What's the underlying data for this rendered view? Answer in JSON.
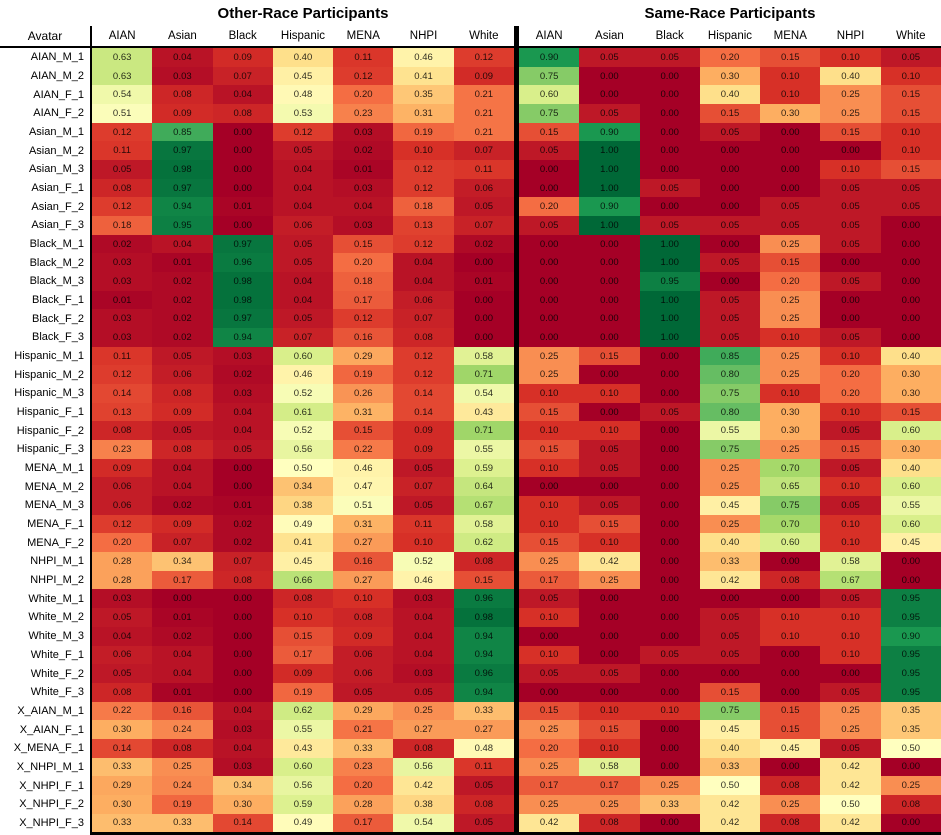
{
  "chart_data": {
    "type": "heatmap",
    "title_left": "Other-Race Participants",
    "title_right": "Same-Race Participants",
    "row_header": "Avatar",
    "columns": [
      "AIAN",
      "Asian",
      "Black",
      "Hispanic",
      "MENA",
      "NHPI",
      "White"
    ],
    "vmin": 0,
    "vmax": 1,
    "colormap": "RdYlGn",
    "colormap_anchors": [
      "#a50026",
      "#d73027",
      "#f46d43",
      "#fdae61",
      "#fee08b",
      "#ffffbf",
      "#d9ef8b",
      "#a6d96a",
      "#66bd63",
      "#1a9850",
      "#006837"
    ],
    "grid": false,
    "legend": "none",
    "rows": [
      {
        "label": "AIAN_M_1",
        "other": [
          0.63,
          0.04,
          0.09,
          0.4,
          0.11,
          0.46,
          0.12
        ],
        "same": [
          0.9,
          0.05,
          0.05,
          0.2,
          0.15,
          0.1,
          0.05
        ]
      },
      {
        "label": "AIAN_M_2",
        "other": [
          0.63,
          0.03,
          0.07,
          0.45,
          0.12,
          0.41,
          0.09
        ],
        "same": [
          0.75,
          0.0,
          0.0,
          0.3,
          0.1,
          0.4,
          0.1
        ]
      },
      {
        "label": "AIAN_F_1",
        "other": [
          0.54,
          0.08,
          0.04,
          0.48,
          0.2,
          0.35,
          0.21
        ],
        "same": [
          0.6,
          0.0,
          0.0,
          0.4,
          0.1,
          0.25,
          0.15
        ]
      },
      {
        "label": "AIAN_F_2",
        "other": [
          0.51,
          0.09,
          0.08,
          0.53,
          0.23,
          0.31,
          0.21
        ],
        "same": [
          0.75,
          0.05,
          0.0,
          0.15,
          0.3,
          0.25,
          0.15
        ]
      },
      {
        "label": "Asian_M_1",
        "other": [
          0.12,
          0.85,
          0.0,
          0.12,
          0.03,
          0.19,
          0.21
        ],
        "same": [
          0.15,
          0.9,
          0.0,
          0.05,
          0.0,
          0.15,
          0.1
        ]
      },
      {
        "label": "Asian_M_2",
        "other": [
          0.11,
          0.97,
          0.0,
          0.05,
          0.02,
          0.1,
          0.07
        ],
        "same": [
          0.05,
          1.0,
          0.0,
          0.0,
          0.0,
          0.0,
          0.1
        ]
      },
      {
        "label": "Asian_M_3",
        "other": [
          0.05,
          0.98,
          0.0,
          0.04,
          0.01,
          0.12,
          0.11
        ],
        "same": [
          0.0,
          1.0,
          0.0,
          0.0,
          0.0,
          0.1,
          0.15
        ]
      },
      {
        "label": "Asian_F_1",
        "other": [
          0.08,
          0.97,
          0.0,
          0.04,
          0.03,
          0.12,
          0.06
        ],
        "same": [
          0.0,
          1.0,
          0.05,
          0.0,
          0.0,
          0.05,
          0.05
        ]
      },
      {
        "label": "Asian_F_2",
        "other": [
          0.12,
          0.94,
          0.01,
          0.04,
          0.04,
          0.18,
          0.05
        ],
        "same": [
          0.2,
          0.9,
          0.0,
          0.0,
          0.05,
          0.05,
          0.05
        ]
      },
      {
        "label": "Asian_F_3",
        "other": [
          0.18,
          0.95,
          0.0,
          0.06,
          0.03,
          0.13,
          0.07
        ],
        "same": [
          0.05,
          1.0,
          0.05,
          0.05,
          0.05,
          0.05,
          0.0
        ]
      },
      {
        "label": "Black_M_1",
        "other": [
          0.02,
          0.04,
          0.97,
          0.05,
          0.15,
          0.12,
          0.02
        ],
        "same": [
          0.0,
          0.0,
          1.0,
          0.0,
          0.25,
          0.05,
          0.0
        ]
      },
      {
        "label": "Black_M_2",
        "other": [
          0.03,
          0.01,
          0.96,
          0.05,
          0.2,
          0.04,
          0.0
        ],
        "same": [
          0.0,
          0.0,
          1.0,
          0.05,
          0.15,
          0.0,
          0.0
        ]
      },
      {
        "label": "Black_M_3",
        "other": [
          0.03,
          0.02,
          0.98,
          0.04,
          0.18,
          0.04,
          0.01
        ],
        "same": [
          0.0,
          0.0,
          0.95,
          0.0,
          0.2,
          0.05,
          0.0
        ]
      },
      {
        "label": "Black_F_1",
        "other": [
          0.01,
          0.02,
          0.98,
          0.04,
          0.17,
          0.06,
          0.0
        ],
        "same": [
          0.0,
          0.0,
          1.0,
          0.05,
          0.25,
          0.0,
          0.0
        ]
      },
      {
        "label": "Black_F_2",
        "other": [
          0.03,
          0.02,
          0.97,
          0.05,
          0.12,
          0.07,
          0.0
        ],
        "same": [
          0.0,
          0.0,
          1.0,
          0.05,
          0.25,
          0.0,
          0.0
        ]
      },
      {
        "label": "Black_F_3",
        "other": [
          0.03,
          0.02,
          0.94,
          0.07,
          0.16,
          0.08,
          0.0
        ],
        "same": [
          0.0,
          0.0,
          1.0,
          0.05,
          0.1,
          0.05,
          0.0
        ]
      },
      {
        "label": "Hispanic_M_1",
        "other": [
          0.11,
          0.05,
          0.03,
          0.6,
          0.29,
          0.12,
          0.58
        ],
        "same": [
          0.25,
          0.15,
          0.0,
          0.85,
          0.25,
          0.1,
          0.4
        ]
      },
      {
        "label": "Hispanic_M_2",
        "other": [
          0.12,
          0.06,
          0.02,
          0.46,
          0.19,
          0.12,
          0.71
        ],
        "same": [
          0.25,
          0.0,
          0.0,
          0.8,
          0.25,
          0.2,
          0.3
        ]
      },
      {
        "label": "Hispanic_M_3",
        "other": [
          0.14,
          0.08,
          0.03,
          0.52,
          0.26,
          0.14,
          0.54
        ],
        "same": [
          0.1,
          0.1,
          0.0,
          0.75,
          0.1,
          0.2,
          0.3
        ]
      },
      {
        "label": "Hispanic_F_1",
        "other": [
          0.13,
          0.09,
          0.04,
          0.61,
          0.31,
          0.14,
          0.43
        ],
        "same": [
          0.15,
          0.0,
          0.05,
          0.8,
          0.3,
          0.1,
          0.15
        ]
      },
      {
        "label": "Hispanic_F_2",
        "other": [
          0.08,
          0.05,
          0.04,
          0.52,
          0.15,
          0.09,
          0.71
        ],
        "same": [
          0.1,
          0.1,
          0.0,
          0.55,
          0.3,
          0.05,
          0.6
        ]
      },
      {
        "label": "Hispanic_F_3",
        "other": [
          0.23,
          0.08,
          0.05,
          0.56,
          0.22,
          0.09,
          0.55
        ],
        "same": [
          0.15,
          0.05,
          0.0,
          0.75,
          0.25,
          0.15,
          0.3
        ]
      },
      {
        "label": "MENA_M_1",
        "other": [
          0.09,
          0.04,
          0.0,
          0.5,
          0.46,
          0.05,
          0.59
        ],
        "same": [
          0.1,
          0.05,
          0.0,
          0.25,
          0.7,
          0.05,
          0.4
        ]
      },
      {
        "label": "MENA_M_2",
        "other": [
          0.06,
          0.04,
          0.0,
          0.34,
          0.47,
          0.07,
          0.64
        ],
        "same": [
          0.0,
          0.0,
          0.0,
          0.25,
          0.65,
          0.1,
          0.6
        ]
      },
      {
        "label": "MENA_M_3",
        "other": [
          0.06,
          0.02,
          0.01,
          0.38,
          0.51,
          0.05,
          0.67
        ],
        "same": [
          0.1,
          0.05,
          0.0,
          0.45,
          0.75,
          0.05,
          0.55
        ]
      },
      {
        "label": "MENA_F_1",
        "other": [
          0.12,
          0.09,
          0.02,
          0.49,
          0.31,
          0.11,
          0.58
        ],
        "same": [
          0.1,
          0.15,
          0.0,
          0.25,
          0.7,
          0.1,
          0.6
        ]
      },
      {
        "label": "MENA_F_2",
        "other": [
          0.2,
          0.07,
          0.02,
          0.41,
          0.27,
          0.1,
          0.62
        ],
        "same": [
          0.15,
          0.1,
          0.0,
          0.4,
          0.6,
          0.1,
          0.45
        ]
      },
      {
        "label": "NHPI_M_1",
        "other": [
          0.28,
          0.34,
          0.07,
          0.45,
          0.16,
          0.52,
          0.08
        ],
        "same": [
          0.25,
          0.42,
          0.0,
          0.33,
          0.0,
          0.58,
          0.0
        ]
      },
      {
        "label": "NHPI_M_2",
        "other": [
          0.28,
          0.17,
          0.08,
          0.66,
          0.27,
          0.46,
          0.15
        ],
        "same": [
          0.17,
          0.25,
          0.0,
          0.42,
          0.08,
          0.67,
          0.0
        ]
      },
      {
        "label": "White_M_1",
        "other": [
          0.03,
          0.0,
          0.0,
          0.08,
          0.1,
          0.03,
          0.96
        ],
        "same": [
          0.05,
          0.0,
          0.0,
          0.0,
          0.0,
          0.05,
          0.95
        ]
      },
      {
        "label": "White_M_2",
        "other": [
          0.05,
          0.01,
          0.0,
          0.1,
          0.08,
          0.04,
          0.98
        ],
        "same": [
          0.1,
          0.0,
          0.0,
          0.05,
          0.1,
          0.1,
          0.95
        ]
      },
      {
        "label": "White_M_3",
        "other": [
          0.04,
          0.02,
          0.0,
          0.15,
          0.09,
          0.04,
          0.94
        ],
        "same": [
          0.0,
          0.0,
          0.0,
          0.05,
          0.1,
          0.1,
          0.9
        ]
      },
      {
        "label": "White_F_1",
        "other": [
          0.06,
          0.04,
          0.0,
          0.17,
          0.06,
          0.04,
          0.94
        ],
        "same": [
          0.1,
          0.0,
          0.05,
          0.05,
          0.0,
          0.1,
          0.95
        ]
      },
      {
        "label": "White_F_2",
        "other": [
          0.05,
          0.04,
          0.0,
          0.09,
          0.06,
          0.03,
          0.96
        ],
        "same": [
          0.05,
          0.05,
          0.0,
          0.0,
          0.0,
          0.0,
          0.95
        ]
      },
      {
        "label": "White_F_3",
        "other": [
          0.08,
          0.01,
          0.0,
          0.19,
          0.05,
          0.05,
          0.94
        ],
        "same": [
          0.0,
          0.0,
          0.0,
          0.15,
          0.0,
          0.05,
          0.95
        ]
      },
      {
        "label": "X_AIAN_M_1",
        "other": [
          0.22,
          0.16,
          0.04,
          0.62,
          0.29,
          0.25,
          0.33
        ],
        "same": [
          0.15,
          0.1,
          0.1,
          0.75,
          0.15,
          0.25,
          0.35
        ]
      },
      {
        "label": "X_AIAN_F_1",
        "other": [
          0.3,
          0.24,
          0.03,
          0.55,
          0.21,
          0.27,
          0.27
        ],
        "same": [
          0.25,
          0.15,
          0.0,
          0.45,
          0.15,
          0.25,
          0.35
        ]
      },
      {
        "label": "X_MENA_F_1",
        "other": [
          0.14,
          0.08,
          0.04,
          0.43,
          0.33,
          0.08,
          0.48
        ],
        "same": [
          0.2,
          0.1,
          0.0,
          0.4,
          0.45,
          0.05,
          0.5
        ]
      },
      {
        "label": "X_NHPI_M_1",
        "other": [
          0.33,
          0.25,
          0.03,
          0.6,
          0.23,
          0.56,
          0.11
        ],
        "same": [
          0.25,
          0.58,
          0.0,
          0.33,
          0.0,
          0.42,
          0.0
        ]
      },
      {
        "label": "X_NHPI_F_1",
        "other": [
          0.29,
          0.24,
          0.34,
          0.56,
          0.2,
          0.42,
          0.05
        ],
        "same": [
          0.17,
          0.17,
          0.25,
          0.5,
          0.08,
          0.42,
          0.25
        ]
      },
      {
        "label": "X_NHPI_F_2",
        "other": [
          0.3,
          0.19,
          0.3,
          0.59,
          0.28,
          0.38,
          0.08
        ],
        "same": [
          0.25,
          0.25,
          0.33,
          0.42,
          0.25,
          0.5,
          0.08
        ]
      },
      {
        "label": "X_NHPI_F_3",
        "other": [
          0.33,
          0.33,
          0.14,
          0.49,
          0.17,
          0.54,
          0.05
        ],
        "same": [
          0.42,
          0.08,
          0.0,
          0.42,
          0.08,
          0.42,
          0.0
        ]
      }
    ]
  }
}
